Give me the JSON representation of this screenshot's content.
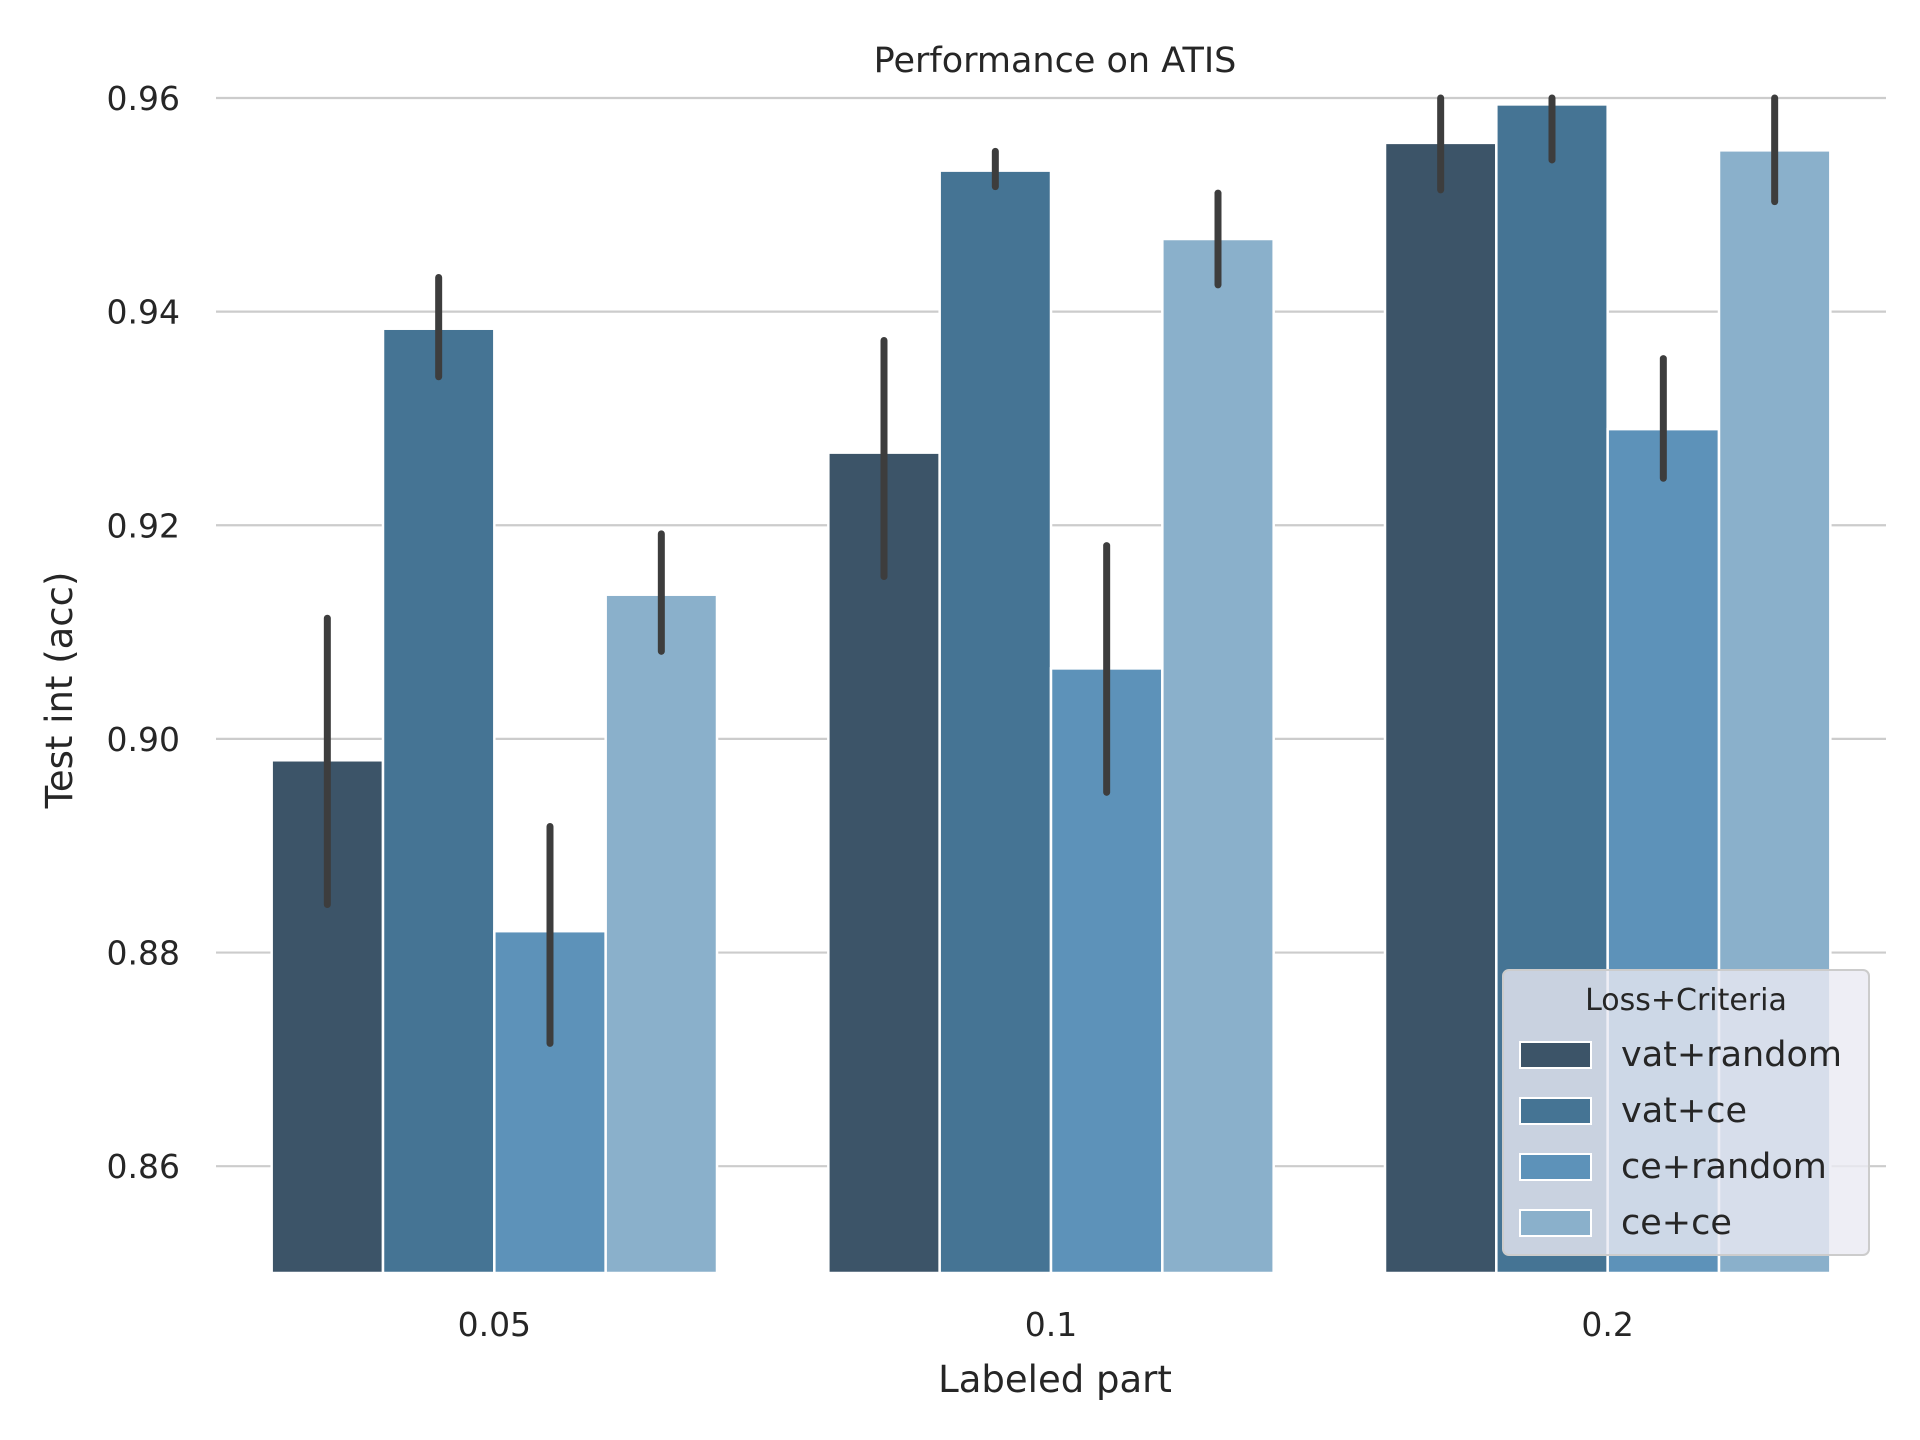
{
  "chart_data": {
    "type": "bar",
    "title": "Performance on ATIS",
    "xlabel": "Labeled part",
    "ylabel": "Test int (acc)",
    "categories": [
      "0.05",
      "0.1",
      "0.2"
    ],
    "ylim": [
      0.85,
      0.96
    ],
    "yticks": [
      0.86,
      0.88,
      0.9,
      0.92,
      0.94,
      0.96
    ],
    "ytick_labels": [
      "0.86",
      "0.88",
      "0.90",
      "0.92",
      "0.94",
      "0.96"
    ],
    "grid": "horizontal",
    "legend": {
      "title": "Loss+Criteria",
      "placement": "lower-right"
    },
    "series": [
      {
        "name": "vat+random",
        "color": "#3c5468",
        "values": [
          0.898,
          0.9268,
          0.9558
        ],
        "err_low": [
          0.8845,
          0.9152,
          0.9514
        ],
        "err_high": [
          0.9113,
          0.9373,
          0.96
        ]
      },
      {
        "name": "vat+ce",
        "color": "#457494",
        "values": [
          0.9384,
          0.9532,
          0.9594
        ],
        "err_low": [
          0.9339,
          0.9517,
          0.9542
        ],
        "err_high": [
          0.9432,
          0.955,
          0.96
        ]
      },
      {
        "name": "ce+random",
        "color": "#5d92b9",
        "values": [
          0.882,
          0.9066,
          0.929
        ],
        "err_low": [
          0.8715,
          0.895,
          0.9244
        ],
        "err_high": [
          0.8918,
          0.9181,
          0.9356
        ]
      },
      {
        "name": "ce+ce",
        "color": "#8ab0cb",
        "values": [
          0.9135,
          0.9468,
          0.9551
        ],
        "err_low": [
          0.9082,
          0.9425,
          0.9503
        ],
        "err_high": [
          0.9192,
          0.9511,
          0.96
        ]
      }
    ]
  }
}
